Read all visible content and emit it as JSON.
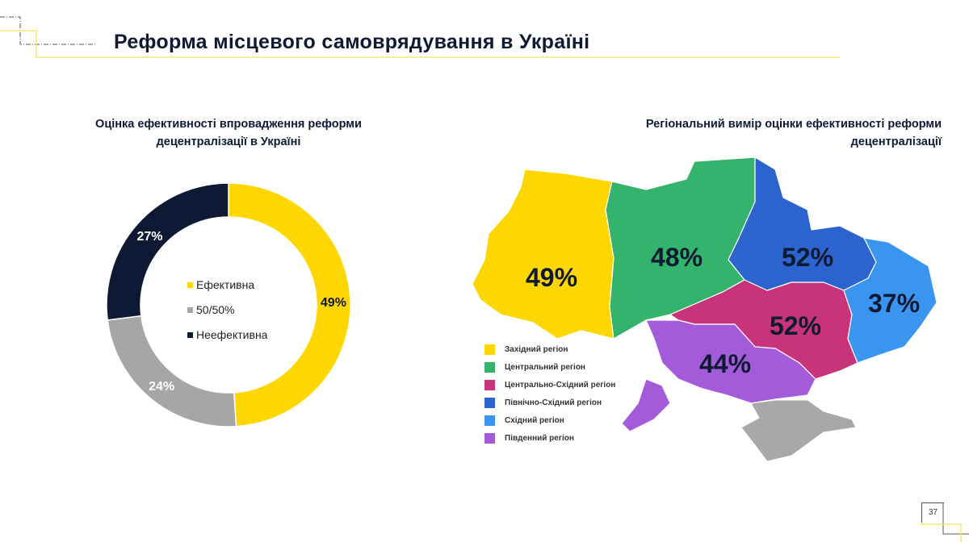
{
  "header": {
    "title": "Реформа місцевого самоврядування в Україні"
  },
  "page_number": "37",
  "chart_data": [
    {
      "type": "pie",
      "donut": true,
      "title": "Оцінка ефективності впровадження реформи децентралізації в Україні",
      "categories": [
        "Ефективна",
        "50/50%",
        "Неефективна"
      ],
      "values": [
        49,
        24,
        27
      ],
      "labels": [
        "49%",
        "24%",
        "27%"
      ],
      "colors": [
        "#FFD700",
        "#A6A6A6",
        "#0E1A33"
      ],
      "legend": "center"
    },
    {
      "type": "map",
      "title": "Регіональний вимір оцінки ефективності реформи децентралізації",
      "regions": [
        {
          "name": "Західний регіон",
          "value": 49,
          "label": "49%",
          "color": "#FFD700"
        },
        {
          "name": "Центральний регіон",
          "value": 48,
          "label": "48%",
          "color": "#33B36B"
        },
        {
          "name": "Центрально-Східний регіон",
          "value": 52,
          "label": "52%",
          "color": "#C8337A"
        },
        {
          "name": "Північно-Східний регіон",
          "value": 52,
          "label": "52%",
          "color": "#2B64CF"
        },
        {
          "name": "Східний регіон",
          "value": 37,
          "label": "37%",
          "color": "#3A95F0"
        },
        {
          "name": "Південний регіон",
          "value": 44,
          "label": "44%",
          "color": "#A45BDA"
        }
      ],
      "other_color": "#A8A8A8",
      "legend": "bottom-left"
    }
  ]
}
